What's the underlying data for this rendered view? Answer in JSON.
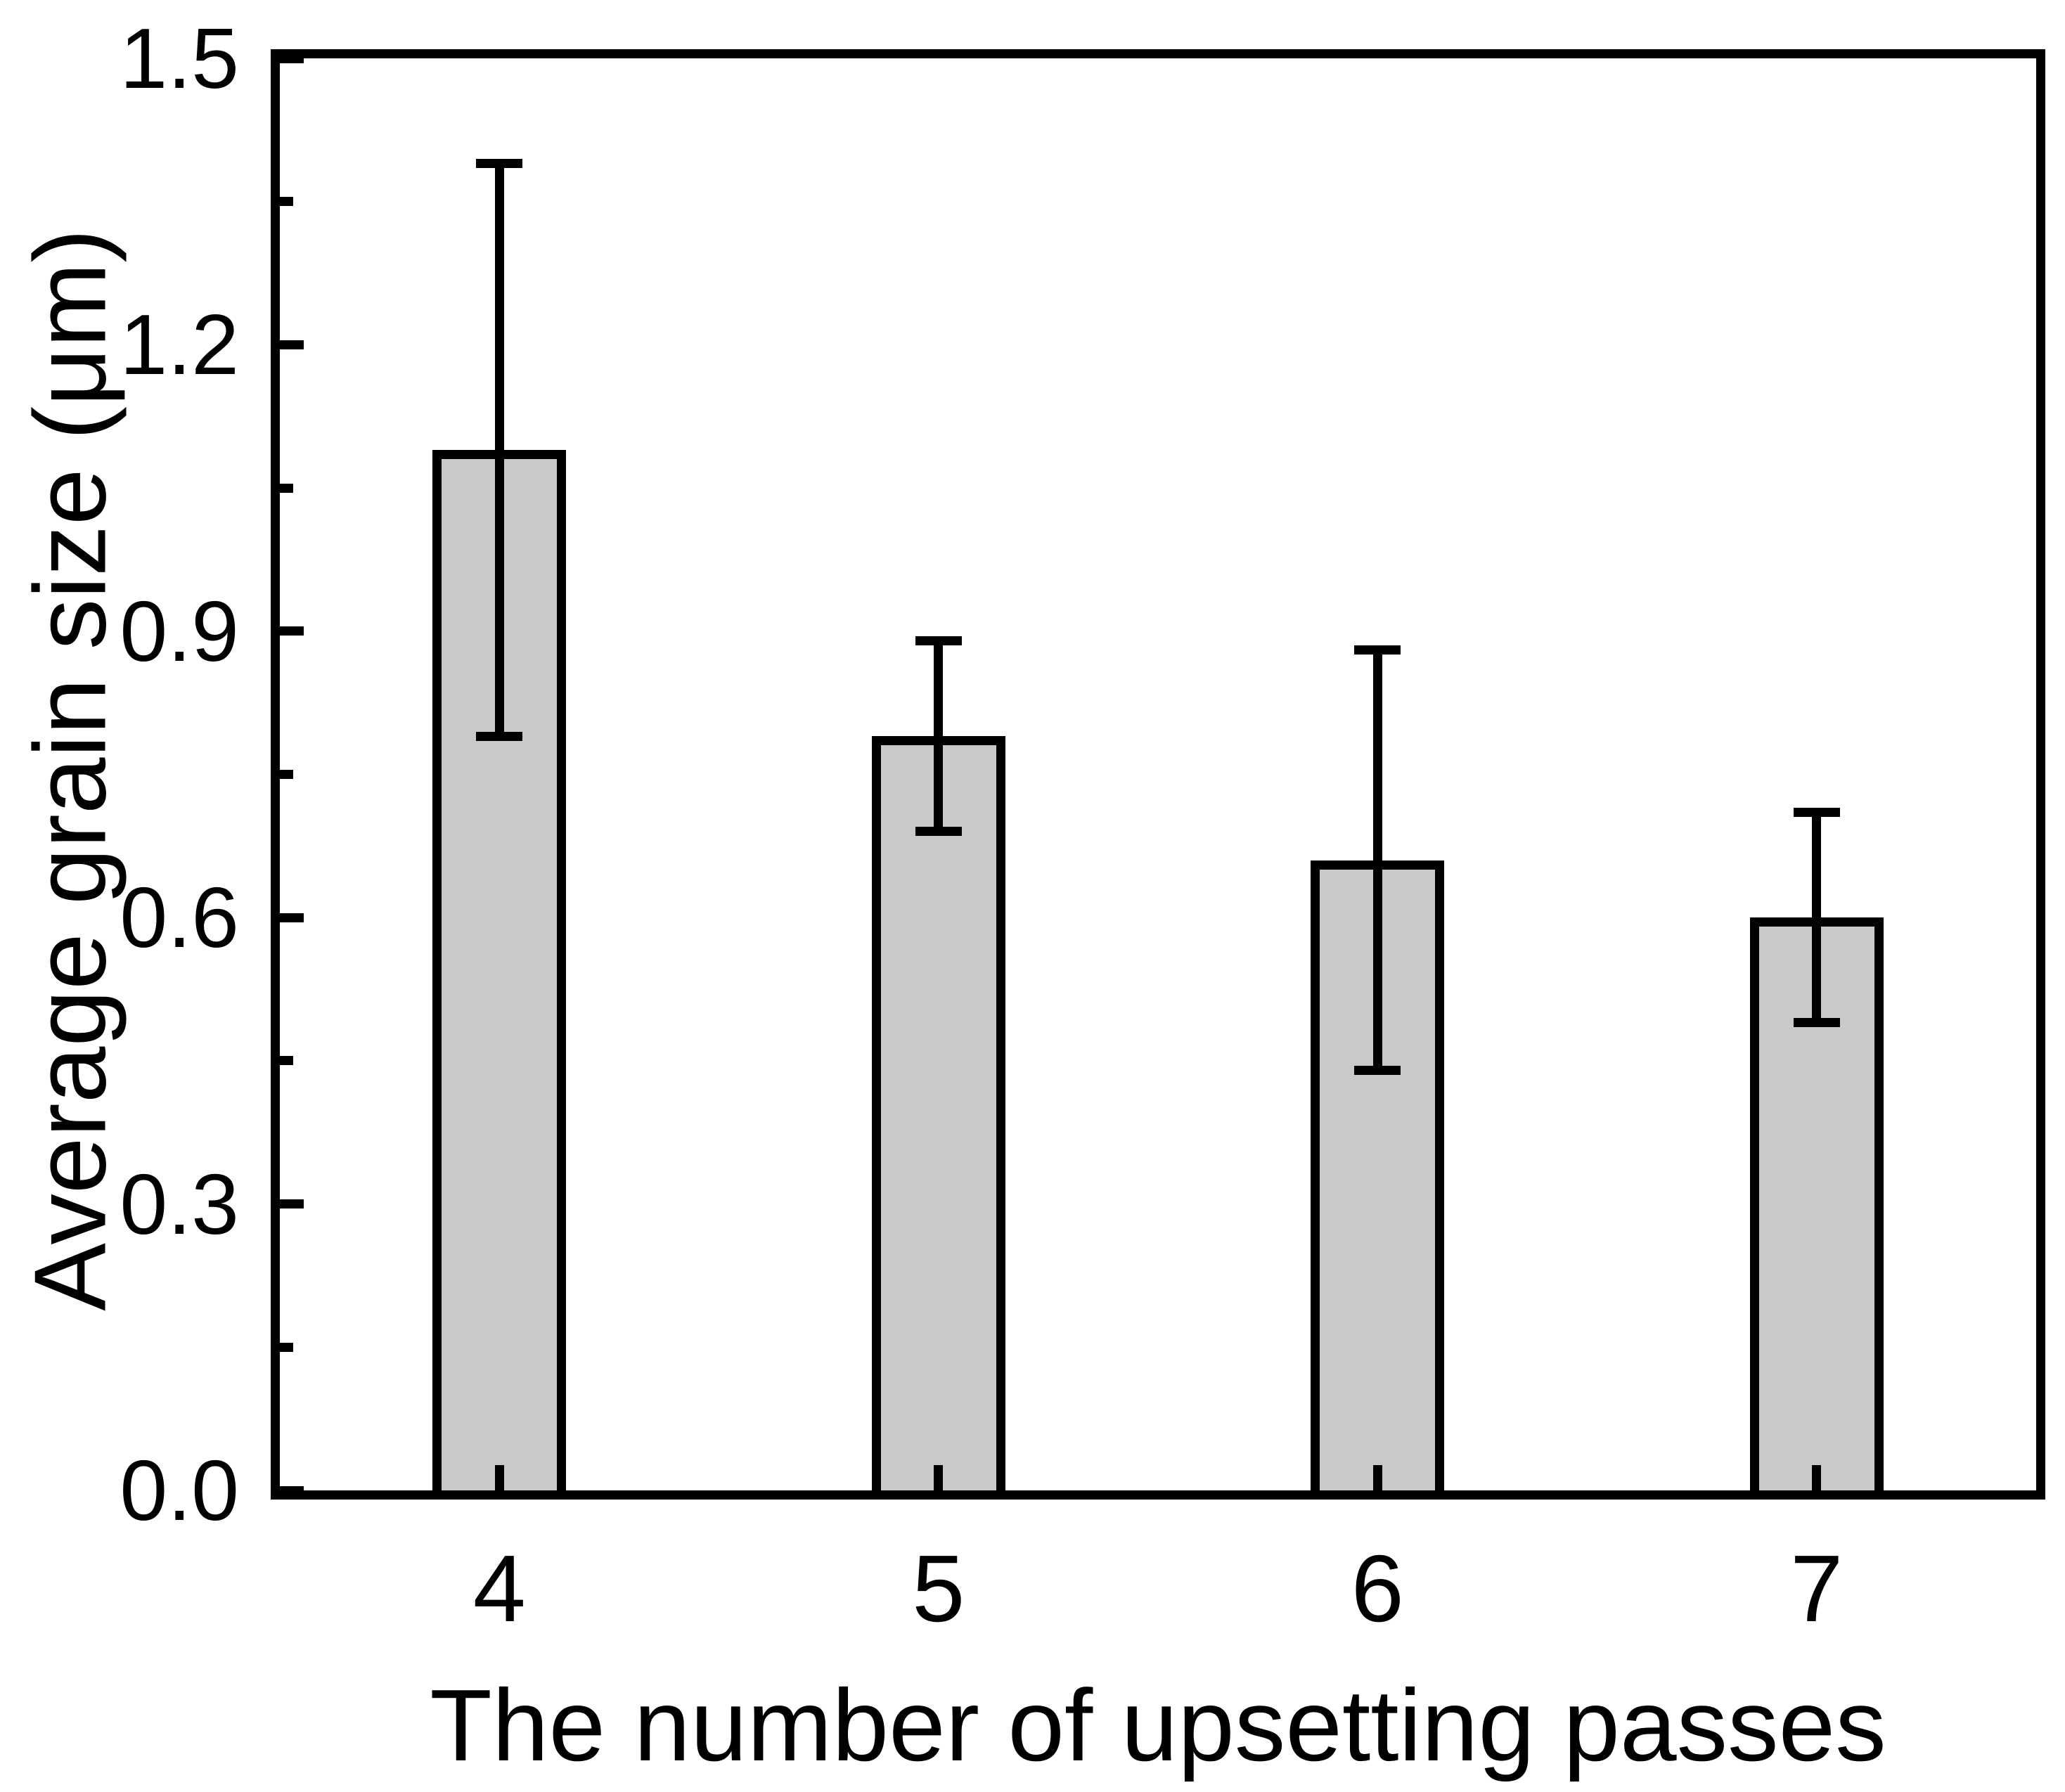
{
  "figure": {
    "background": "#ffffff",
    "axis_color": "#000000"
  },
  "chart_data": {
    "type": "bar",
    "title": "",
    "xlabel": "The number of upsetting passes",
    "ylabel": "Average grain size (μm)",
    "categories": [
      "4",
      "5",
      "6",
      "7"
    ],
    "values": [
      1.09,
      0.79,
      0.66,
      0.6
    ],
    "error_plus": [
      0.3,
      0.1,
      0.22,
      0.11
    ],
    "error_minus": [
      0.3,
      0.1,
      0.22,
      0.11
    ],
    "error_upper": [
      1.39,
      0.89,
      0.88,
      0.71
    ],
    "error_lower": [
      0.79,
      0.69,
      0.44,
      0.49
    ],
    "ylim": [
      0,
      1.5
    ],
    "y_major_ticks": [
      0.0,
      0.3,
      0.6,
      0.9,
      1.2,
      1.5
    ],
    "y_major_tick_labels": [
      "0.0",
      "0.3",
      "0.6",
      "0.9",
      "1.2",
      "1.5"
    ],
    "y_minor_ticks": [
      0.15,
      0.45,
      0.75,
      1.05,
      1.35
    ],
    "grid": false,
    "legend": null,
    "bar_color": "#c9c9c9",
    "bar_border_color": "#000000",
    "error_color": "#000000"
  }
}
